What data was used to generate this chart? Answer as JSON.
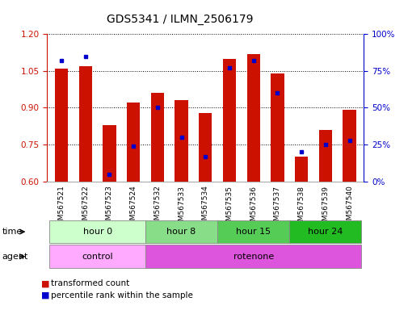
{
  "title": "GDS5341 / ILMN_2506179",
  "samples": [
    "GSM567521",
    "GSM567522",
    "GSM567523",
    "GSM567524",
    "GSM567532",
    "GSM567533",
    "GSM567534",
    "GSM567535",
    "GSM567536",
    "GSM567537",
    "GSM567538",
    "GSM567539",
    "GSM567540"
  ],
  "transformed_count": [
    1.06,
    1.07,
    0.83,
    0.92,
    0.96,
    0.93,
    0.88,
    1.1,
    1.12,
    1.04,
    0.7,
    0.81,
    0.89
  ],
  "percentile_rank": [
    82,
    85,
    5,
    24,
    50,
    30,
    17,
    77,
    82,
    60,
    20,
    25,
    28
  ],
  "ylim_left": [
    0.6,
    1.2
  ],
  "ylim_right": [
    0,
    100
  ],
  "yticks_left": [
    0.6,
    0.75,
    0.9,
    1.05,
    1.2
  ],
  "yticks_right": [
    0,
    25,
    50,
    75,
    100
  ],
  "ytick_labels_right": [
    "0%",
    "25%",
    "50%",
    "75%",
    "100%"
  ],
  "bar_color": "#cc1100",
  "dot_color": "#0000cc",
  "bar_bottom": 0.6,
  "grid_color": "black",
  "time_groups": [
    {
      "label": "hour 0",
      "start": 0,
      "end": 4,
      "color": "#ccffcc"
    },
    {
      "label": "hour 8",
      "start": 4,
      "end": 7,
      "color": "#88dd88"
    },
    {
      "label": "hour 15",
      "start": 7,
      "end": 10,
      "color": "#55cc55"
    },
    {
      "label": "hour 24",
      "start": 10,
      "end": 13,
      "color": "#22bb22"
    }
  ],
  "agent_groups": [
    {
      "label": "control",
      "start": 0,
      "end": 4,
      "color": "#ffaaff"
    },
    {
      "label": "rotenone",
      "start": 4,
      "end": 13,
      "color": "#dd55dd"
    }
  ],
  "time_row_label": "time",
  "agent_row_label": "agent",
  "legend_items": [
    {
      "color": "#cc1100",
      "label": "transformed count"
    },
    {
      "color": "#0000cc",
      "label": "percentile rank within the sample"
    }
  ],
  "bg_color": "#ffffff",
  "left_axis_color": "#cc1100",
  "right_axis_color": "#0000cc"
}
